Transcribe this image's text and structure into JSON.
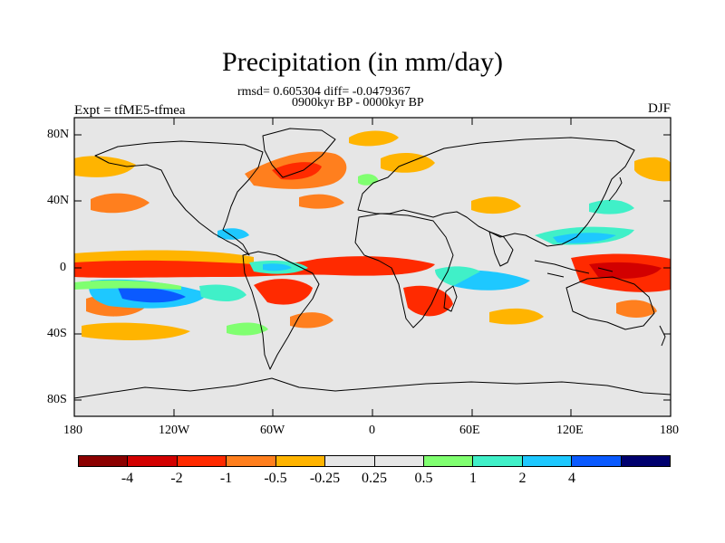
{
  "title": "Precipitation (in mm/day)",
  "stats": "rmsd= 0.605304 diff= -0.0479367",
  "period": "0900kyr BP - 0000kyr BP",
  "experiment": "Expt = tfME5-tfmea",
  "season": "DJF",
  "lat_ticks": [
    "80N",
    "40N",
    "0",
    "40S",
    "80S"
  ],
  "lon_ticks": [
    "180",
    "120W",
    "60W",
    "0",
    "60E",
    "120E",
    "180"
  ],
  "colorbar": {
    "colors": [
      "#8b0000",
      "#d20000",
      "#ff2a00",
      "#ff7f1e",
      "#ffb400",
      "#e6e6e6",
      "#e6e6e6",
      "#80ff70",
      "#40f0c8",
      "#1ec8ff",
      "#0a5aff",
      "#00006e"
    ],
    "labels": [
      "-4",
      "-2",
      "-1",
      "-0.5",
      "-0.25",
      "0.25",
      "0.5",
      "1",
      "2",
      "4"
    ]
  },
  "palette": {
    "land_bg": "#e6e6e6",
    "dry_strong": "#d20000",
    "dry": "#ff2a00",
    "dry_mod": "#ff7f1e",
    "dry_weak": "#ffb400",
    "wet_weak": "#80ff70",
    "wet": "#40f0c8",
    "wet_mod": "#1ec8ff",
    "wet_strong": "#0a5aff"
  }
}
